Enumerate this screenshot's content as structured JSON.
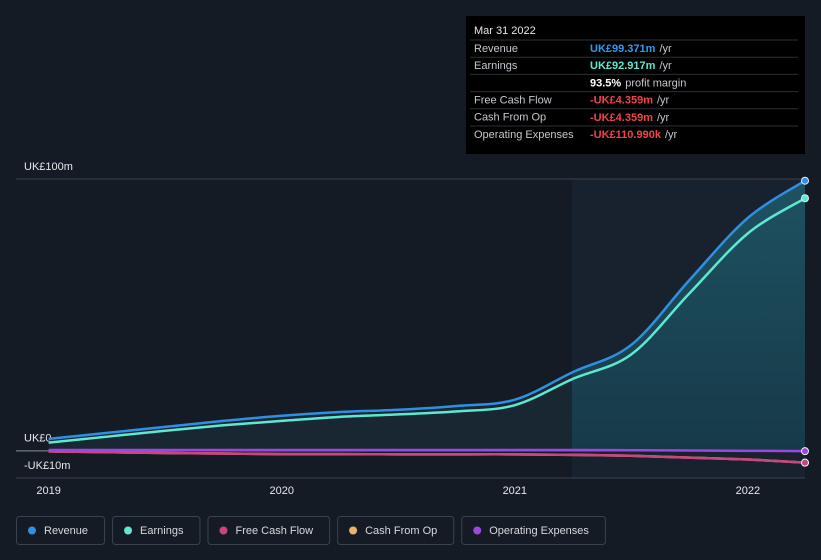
{
  "chart_data": {
    "type": "line",
    "x": [
      2019.0,
      2019.25,
      2019.5,
      2019.75,
      2020.0,
      2020.25,
      2020.5,
      2020.75,
      2021.0,
      2021.25,
      2021.5,
      2021.75,
      2022.0,
      2022.245
    ],
    "xlim": [
      2018.86,
      2022.245
    ],
    "xticks": [
      2019,
      2020,
      2021,
      2022
    ],
    "ylim": [
      -10,
      100
    ],
    "yticks": [
      {
        "value": 100,
        "label": "UK£100m"
      },
      {
        "value": 0,
        "label": "UK£0"
      },
      {
        "value": -10,
        "label": "-UK£10m"
      }
    ],
    "series": [
      {
        "name": "Revenue",
        "color": "#2f8fe0",
        "values": [
          4.4,
          6.6,
          8.8,
          11.0,
          12.9,
          14.3,
          15.1,
          16.5,
          18.8,
          29.0,
          39.0,
          62.9,
          85.7,
          99.371
        ]
      },
      {
        "name": "Earnings",
        "color": "#5ee8d1",
        "values": [
          3.0,
          5.2,
          7.4,
          9.4,
          11.0,
          12.5,
          13.4,
          14.5,
          16.8,
          26.5,
          35.5,
          58.0,
          80.0,
          92.917
        ]
      },
      {
        "name": "Free Cash Flow",
        "color": "#c9457f",
        "values": [
          -0.2,
          -0.5,
          -0.8,
          -1.0,
          -1.2,
          -1.2,
          -1.3,
          -1.3,
          -1.3,
          -1.5,
          -1.8,
          -2.5,
          -3.2,
          -4.359
        ]
      },
      {
        "name": "Cash From Op",
        "color": "#e7b46a",
        "values": [
          -0.2,
          -0.5,
          -0.8,
          -1.0,
          -1.2,
          -1.2,
          -1.3,
          -1.3,
          -1.3,
          -1.5,
          -1.8,
          -2.5,
          -3.2,
          -4.359
        ]
      },
      {
        "name": "Operating Expenses",
        "color": "#9b48e0",
        "values": [
          0.3,
          0.3,
          0.3,
          0.3,
          0.3,
          0.3,
          0.3,
          0.3,
          0.3,
          0.3,
          0.2,
          0.1,
          0.0,
          -0.111
        ]
      }
    ],
    "tooltip": {
      "title": "Mar 31 2022",
      "rows": [
        {
          "label": "Revenue",
          "value": "UK£99.371m",
          "unit": "/yr"
        },
        {
          "label": "Earnings",
          "value": "UK£92.917m",
          "unit": "/yr"
        },
        {
          "label": "",
          "value": "93.5%",
          "unit": "profit margin"
        },
        {
          "label": "Free Cash Flow",
          "value": "-UK£4.359m",
          "unit": "/yr"
        },
        {
          "label": "Cash From Op",
          "value": "-UK£4.359m",
          "unit": "/yr"
        },
        {
          "label": "Operating Expenses",
          "value": "-UK£110.990k",
          "unit": "/yr"
        }
      ]
    }
  }
}
